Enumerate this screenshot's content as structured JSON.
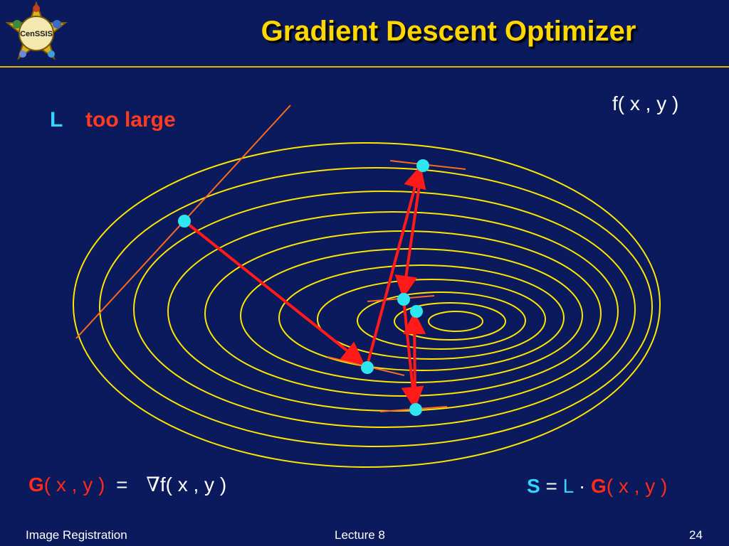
{
  "slide": {
    "title": "Gradient Descent Optimizer",
    "logo_text": "CenSSIS",
    "function_label": "f( x , y )",
    "step_label_letter": "L",
    "step_label_text": "too large",
    "gradient_formula": {
      "symbol": "G",
      "args": "( x , y )",
      "equals": "=",
      "nabla": "∇",
      "rhs": "f( x , y )"
    },
    "step_formula": {
      "symbol": "S",
      "equals": "=",
      "factor": "L",
      "dot": "·",
      "g_symbol": "G",
      "args": "( x , y )"
    }
  },
  "footer": {
    "left": "Image Registration",
    "center": "Lecture 8",
    "page": "24"
  },
  "colors": {
    "background": "#0a1a5c",
    "title": "#ffd700",
    "contour": "#ffe600",
    "arrow": "#ff1a1a",
    "tangent": "#ff6a1a",
    "point": "#2ee6f0"
  }
}
